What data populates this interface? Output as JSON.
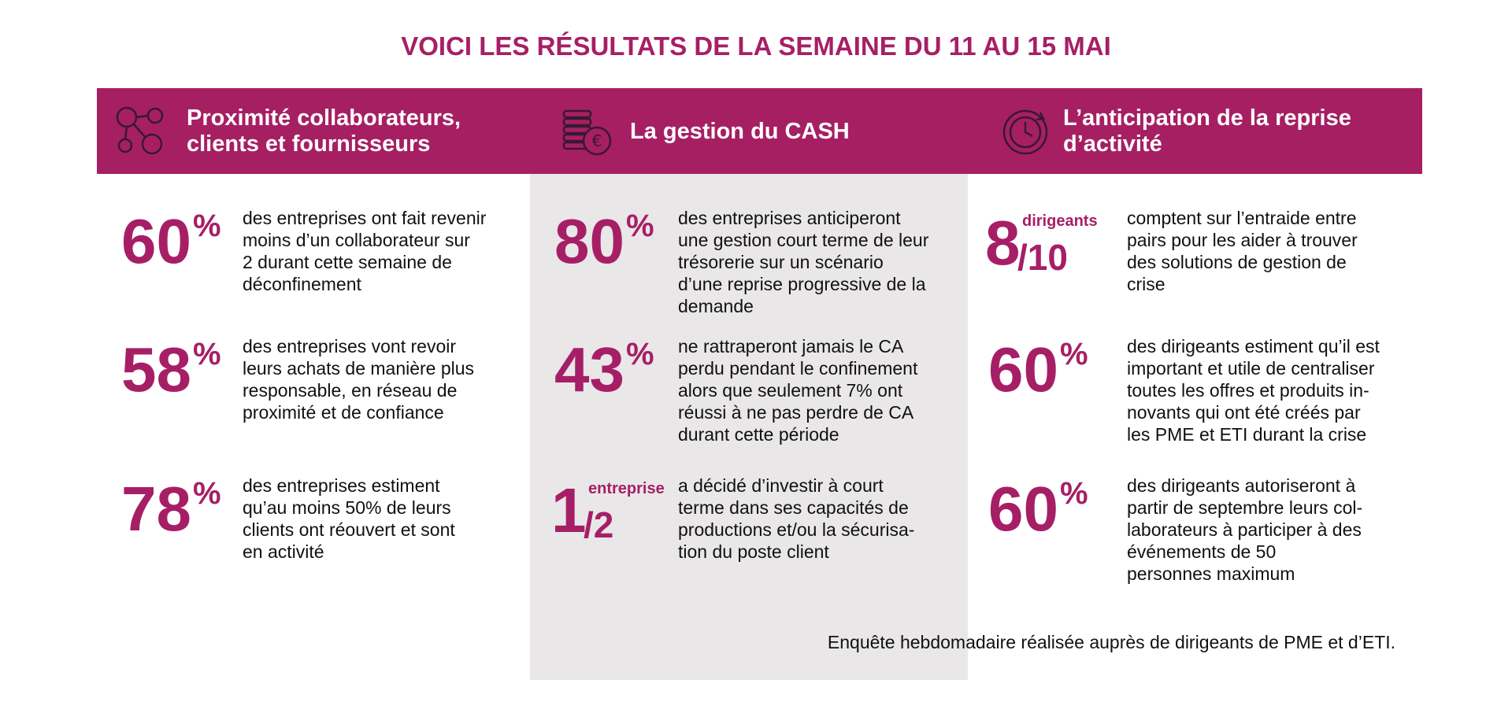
{
  "title": "VOICI LES RÉSULTATS DE LA SEMAINE DU 11 AU 15 MAI",
  "columns": [
    {
      "header": [
        "Proximité collaborateurs,",
        "clients et fournisseurs"
      ],
      "items": [
        {
          "figure": "60",
          "unit": "%",
          "text": [
            "des entreprises ont fait revenir",
            "moins d’un collaborateur sur",
            "2 durant cette semaine de",
            "déconfinement"
          ]
        },
        {
          "figure": "58",
          "unit": "%",
          "text": [
            "des entreprises vont revoir",
            "leurs achats de manière plus",
            "responsable, en réseau de",
            "proximité et de confiance"
          ]
        },
        {
          "figure": "78",
          "unit": "%",
          "text": [
            "des entreprises estiment",
            "qu’au moins 50% de leurs",
            "clients ont réouvert et sont",
            "en activité"
          ]
        }
      ]
    },
    {
      "header": [
        "La gestion du CASH"
      ],
      "items": [
        {
          "figure": "80",
          "unit": "%",
          "text": [
            "des entreprises anticiperont",
            "une gestion court terme de leur",
            "trésorerie sur un scénario",
            "d’une reprise progressive de la",
            "demande"
          ]
        },
        {
          "figure": "43",
          "unit": "%",
          "text": [
            "ne rattraperont jamais le CA",
            "perdu pendant le confinement",
            "alors que seulement 7% ont",
            "réussi à ne pas perdre de CA",
            "durant cette période"
          ]
        },
        {
          "figure": "1",
          "unit": "entreprise",
          "denominator": "/2",
          "text": [
            "a décidé d’investir à court",
            "terme dans ses capacités de",
            "productions et/ou la sécurisa-",
            "tion du poste client"
          ]
        }
      ]
    },
    {
      "header": [
        "L’anticipation de la reprise",
        "d’activité"
      ],
      "items": [
        {
          "figure": "8",
          "unit": "dirigeants",
          "denominator": "/10",
          "text": [
            "comptent sur l’entraide entre",
            "pairs pour les aider à trouver",
            "des solutions de gestion de",
            "crise"
          ]
        },
        {
          "figure": "60",
          "unit": "%",
          "text": [
            "des dirigeants estiment qu’il est",
            "important et utile de centraliser",
            "toutes les offres et produits in-",
            "novants qui ont été créés par",
            "les PME et ETI durant la crise"
          ]
        },
        {
          "figure": "60",
          "unit": "%",
          "text": [
            "des dirigeants autoriseront à",
            "partir de septembre leurs col-",
            "laborateurs à participer à des",
            "événements de 50",
            "personnes maximum"
          ]
        }
      ]
    }
  ],
  "footer": "Enquête hebdomadaire réalisée auprès de dirigeants de PME et d’ETI."
}
